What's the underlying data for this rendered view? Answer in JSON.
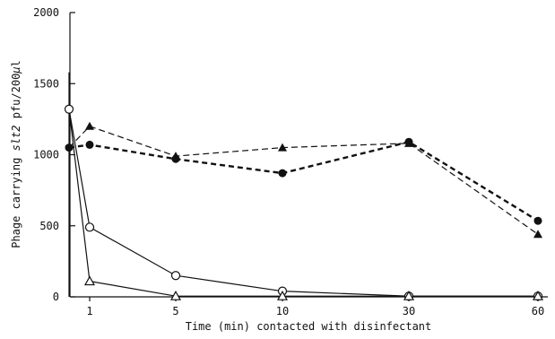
{
  "chart_data": {
    "type": "line",
    "title": "",
    "xlabel": "Time (min) contacted with disinfectant",
    "ylabel_parts": [
      "Phage carrying ",
      "slt2",
      " pfu/200",
      "µ",
      "l"
    ],
    "ylim": [
      0,
      2000
    ],
    "yticks": [
      "0",
      "500",
      "1000",
      "1500",
      "2000"
    ],
    "xtick_labels": [
      "1",
      "5",
      "10",
      "30",
      "60"
    ],
    "x_categories": [
      "0",
      "1",
      "5",
      "10",
      "30",
      "60"
    ],
    "legend": "none",
    "grid": false,
    "series": [
      {
        "marker": "filled-circle",
        "line": "dashed-bold",
        "values": [
          1050,
          1070,
          970,
          870,
          1090,
          535
        ]
      },
      {
        "marker": "filled-triangle",
        "line": "dashed",
        "values": [
          1050,
          1200,
          990,
          1050,
          1080,
          440
        ]
      },
      {
        "marker": "open-circle",
        "line": "solid",
        "values": [
          1320,
          490,
          150,
          40,
          5,
          5
        ]
      },
      {
        "marker": "open-triangle",
        "line": "solid",
        "values": [
          1320,
          110,
          5,
          5,
          5,
          5
        ]
      }
    ],
    "initial_spike": {
      "x": "0",
      "value": 1580
    }
  }
}
